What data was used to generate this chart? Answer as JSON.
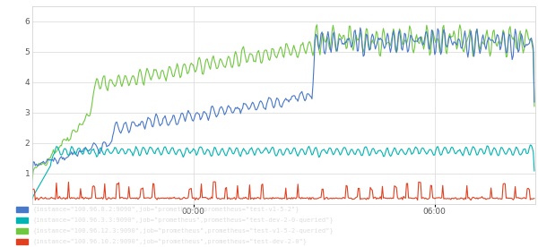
{
  "background_color": "#ffffff",
  "plot_bg_color": "#ffffff",
  "grid_color": "#e0e0e0",
  "legend_bg": "#1a1a1a",
  "legend_text_color": "#cccccc",
  "title": "",
  "xlabel": "",
  "ylabel": "",
  "xlim": [
    0,
    500
  ],
  "ylim": [
    0,
    6.5
  ],
  "yticks": [
    1,
    2,
    3,
    4,
    5,
    6
  ],
  "xtick_labels": [
    "00:00",
    "06:00"
  ],
  "xtick_positions": [
    160,
    400
  ],
  "colors": {
    "blue": "#4878c8",
    "cyan": "#00b4b4",
    "green": "#70c840",
    "red": "#e04020"
  },
  "legend_labels": [
    "{instance=\"100.96.8.2:9090\",job=\"prometheus\",prometheus=\"test-v1-5-2\"}",
    "{instance=\"100.96.3.3:9090\",job=\"prometheus\",prometheus=\"test-dev-2-0-queried\"}",
    "{instance=\"100.96.12.3:9090\",job=\"prometheus\",prometheus=\"test-v1-5-2-queried\"}",
    "{instance=\"100.96.10.2:9090\",job=\"prometheus\",prometheus=\"test-dev-2-0\"}"
  ],
  "legend_colors": [
    "#4878c8",
    "#00b4b4",
    "#70c840",
    "#e04020"
  ],
  "seed": 42,
  "n_points": 500
}
